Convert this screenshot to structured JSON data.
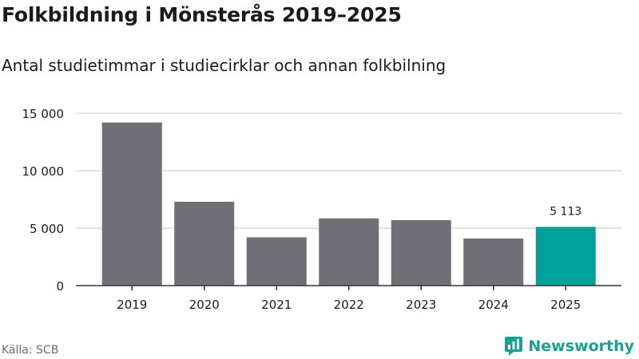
{
  "title": "Folkbildning i Mönsterås 2019–2025",
  "subtitle": "Antal studietimmar i studiecirklar och annan folkbilning",
  "source": "Källa: SCB",
  "brand": "Newsworthy",
  "colors": {
    "bar": "#706f75",
    "highlight": "#00a19a",
    "grid": "#d9d9d9",
    "axis": "#333333",
    "text": "#1a1a1a",
    "brand": "#1aa08f"
  },
  "chart_data": {
    "type": "bar",
    "title": "Folkbildning i Mönsterås 2019–2025",
    "subtitle": "Antal studietimmar i studiecirklar och annan folkbilning",
    "xlabel": "",
    "ylabel": "",
    "categories": [
      "2019",
      "2020",
      "2021",
      "2022",
      "2023",
      "2024",
      "2025"
    ],
    "values": [
      14200,
      7300,
      4200,
      5850,
      5700,
      4100,
      5113
    ],
    "highlight_index": 6,
    "data_labels": [
      {
        "index": 6,
        "text": "5 113"
      }
    ],
    "ylim": [
      0,
      15000
    ],
    "yticks": [
      0,
      5000,
      10000,
      15000
    ],
    "ytick_labels": [
      "0",
      "5 000",
      "10 000",
      "15 000"
    ],
    "grid": true,
    "legend": "none"
  }
}
